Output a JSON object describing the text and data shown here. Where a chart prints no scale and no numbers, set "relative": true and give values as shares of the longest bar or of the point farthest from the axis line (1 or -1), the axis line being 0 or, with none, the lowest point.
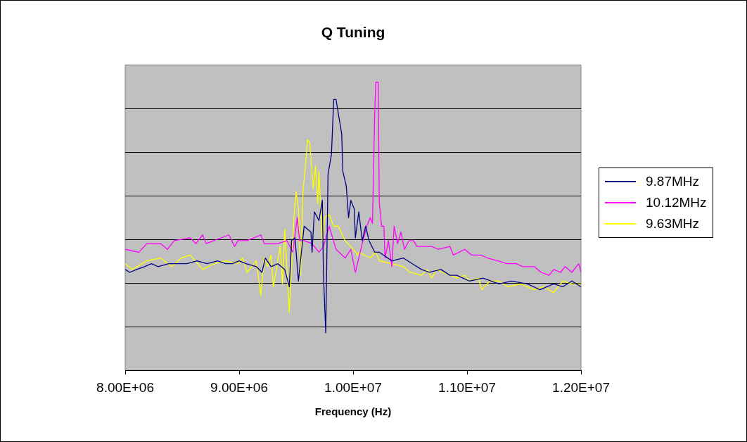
{
  "chart_data": {
    "type": "line",
    "title": "Q Tuning",
    "xlabel": "Frequency (Hz)",
    "relative": true,
    "grid": "y",
    "legend": "right",
    "marker": "none",
    "line_style": "solid",
    "xlim": [
      8000000,
      12000000
    ],
    "xticks": [
      {
        "value": 8000000,
        "label": "8.00E+06"
      },
      {
        "value": 9000000,
        "label": "9.00E+06"
      },
      {
        "value": 10000000,
        "label": "1.00E+07"
      },
      {
        "value": 11000000,
        "label": "1.10E+07"
      },
      {
        "value": 12000000,
        "label": "1.20E+07"
      }
    ],
    "series": [
      {
        "name": "9.87MHz",
        "color": "#000080",
        "x": [
          8000000,
          8040000,
          8100000,
          8170000,
          8230000,
          8290000,
          8380000,
          8440000,
          8540000,
          8630000,
          8720000,
          8810000,
          8880000,
          8940000,
          9000000,
          9060000,
          9150000,
          9200000,
          9230000,
          9280000,
          9340000,
          9400000,
          9440000,
          9460000,
          9490000,
          9520000,
          9570000,
          9630000,
          9640000,
          9660000,
          9700000,
          9730000,
          9740000,
          9760000,
          9780000,
          9810000,
          9830000,
          9850000,
          9900000,
          9910000,
          9940000,
          9960000,
          9980000,
          10010000,
          10020000,
          10050000,
          10080000,
          10110000,
          10140000,
          10190000,
          10230000,
          10340000,
          10440000,
          10520000,
          10600000,
          10670000,
          10770000,
          10850000,
          10910000,
          11020000,
          11140000,
          11280000,
          11390000,
          11530000,
          11640000,
          11760000,
          11840000,
          11920000,
          12000000
        ],
        "values": [
          0.35,
          0.34,
          0.35,
          0.36,
          0.37,
          0.36,
          0.37,
          0.37,
          0.37,
          0.38,
          0.37,
          0.38,
          0.37,
          0.37,
          0.38,
          0.37,
          0.36,
          0.34,
          0.39,
          0.36,
          0.37,
          0.35,
          0.29,
          0.45,
          0.46,
          0.31,
          0.5,
          0.48,
          0.41,
          0.55,
          0.52,
          0.59,
          0.33,
          0.13,
          0.68,
          0.75,
          0.94,
          0.94,
          0.82,
          0.69,
          0.64,
          0.53,
          0.59,
          0.56,
          0.46,
          0.55,
          0.45,
          0.5,
          0.45,
          0.41,
          0.41,
          0.38,
          0.39,
          0.37,
          0.35,
          0.34,
          0.35,
          0.33,
          0.33,
          0.31,
          0.32,
          0.3,
          0.31,
          0.3,
          0.28,
          0.3,
          0.29,
          0.31,
          0.29
        ]
      },
      {
        "name": "10.12MHz",
        "color": "#ff00ff",
        "x": [
          8000000,
          8120000,
          8190000,
          8310000,
          8370000,
          8430000,
          8570000,
          8620000,
          8680000,
          8710000,
          8910000,
          8960000,
          8990000,
          9070000,
          9190000,
          9220000,
          9340000,
          9420000,
          9470000,
          9510000,
          9530000,
          9570000,
          9640000,
          9700000,
          9740000,
          9790000,
          9850000,
          9930000,
          9980000,
          10020000,
          10080000,
          10120000,
          10150000,
          10170000,
          10190000,
          10200000,
          10220000,
          10230000,
          10250000,
          10270000,
          10280000,
          10310000,
          10340000,
          10360000,
          10390000,
          10420000,
          10450000,
          10490000,
          10530000,
          10560000,
          10600000,
          10690000,
          10750000,
          10850000,
          10880000,
          10980000,
          11040000,
          11120000,
          11180000,
          11270000,
          11350000,
          11430000,
          11490000,
          11590000,
          11650000,
          11720000,
          11760000,
          11820000,
          11860000,
          11920000,
          11980000,
          12000000
        ],
        "values": [
          0.42,
          0.41,
          0.44,
          0.44,
          0.42,
          0.45,
          0.46,
          0.44,
          0.47,
          0.44,
          0.47,
          0.43,
          0.45,
          0.45,
          0.47,
          0.44,
          0.44,
          0.45,
          0.41,
          0.53,
          0.45,
          0.45,
          0.44,
          0.41,
          0.43,
          0.5,
          0.42,
          0.39,
          0.42,
          0.34,
          0.44,
          0.5,
          0.53,
          0.51,
          0.9,
          1.0,
          1.0,
          0.58,
          0.5,
          0.5,
          0.39,
          0.45,
          0.36,
          0.5,
          0.44,
          0.48,
          0.42,
          0.45,
          0.45,
          0.43,
          0.43,
          0.43,
          0.42,
          0.43,
          0.4,
          0.42,
          0.4,
          0.4,
          0.39,
          0.38,
          0.37,
          0.37,
          0.36,
          0.36,
          0.34,
          0.33,
          0.35,
          0.34,
          0.36,
          0.34,
          0.37,
          0.34
        ]
      },
      {
        "name": "9.63MHz",
        "color": "#ffff00",
        "x": [
          8000000,
          8060000,
          8190000,
          8310000,
          8410000,
          8490000,
          8570000,
          8680000,
          8780000,
          8880000,
          8990000,
          9030000,
          9070000,
          9150000,
          9190000,
          9220000,
          9250000,
          9280000,
          9300000,
          9360000,
          9380000,
          9400000,
          9440000,
          9480000,
          9500000,
          9520000,
          9540000,
          9560000,
          9590000,
          9600000,
          9620000,
          9650000,
          9670000,
          9690000,
          9700000,
          9730000,
          9750000,
          9790000,
          9830000,
          9870000,
          9930000,
          9980000,
          10040000,
          10050000,
          10150000,
          10200000,
          10230000,
          10340000,
          10440000,
          10500000,
          10600000,
          10650000,
          10690000,
          10730000,
          10790000,
          10910000,
          10980000,
          11020000,
          11100000,
          11130000,
          11200000,
          11280000,
          11360000,
          11470000,
          11590000,
          11670000,
          11760000,
          11840000,
          11920000,
          12000000
        ],
        "values": [
          0.37,
          0.35,
          0.38,
          0.39,
          0.36,
          0.39,
          0.4,
          0.35,
          0.37,
          0.38,
          0.37,
          0.39,
          0.34,
          0.38,
          0.26,
          0.39,
          0.36,
          0.4,
          0.29,
          0.43,
          0.3,
          0.49,
          0.2,
          0.53,
          0.62,
          0.56,
          0.33,
          0.62,
          0.75,
          0.8,
          0.79,
          0.63,
          0.71,
          0.58,
          0.69,
          0.45,
          0.53,
          0.54,
          0.5,
          0.5,
          0.45,
          0.43,
          0.4,
          0.41,
          0.39,
          0.41,
          0.38,
          0.37,
          0.36,
          0.34,
          0.33,
          0.35,
          0.32,
          0.35,
          0.34,
          0.32,
          0.33,
          0.31,
          0.32,
          0.28,
          0.31,
          0.31,
          0.29,
          0.3,
          0.28,
          0.29,
          0.27,
          0.31,
          0.3,
          0.3
        ]
      }
    ]
  }
}
